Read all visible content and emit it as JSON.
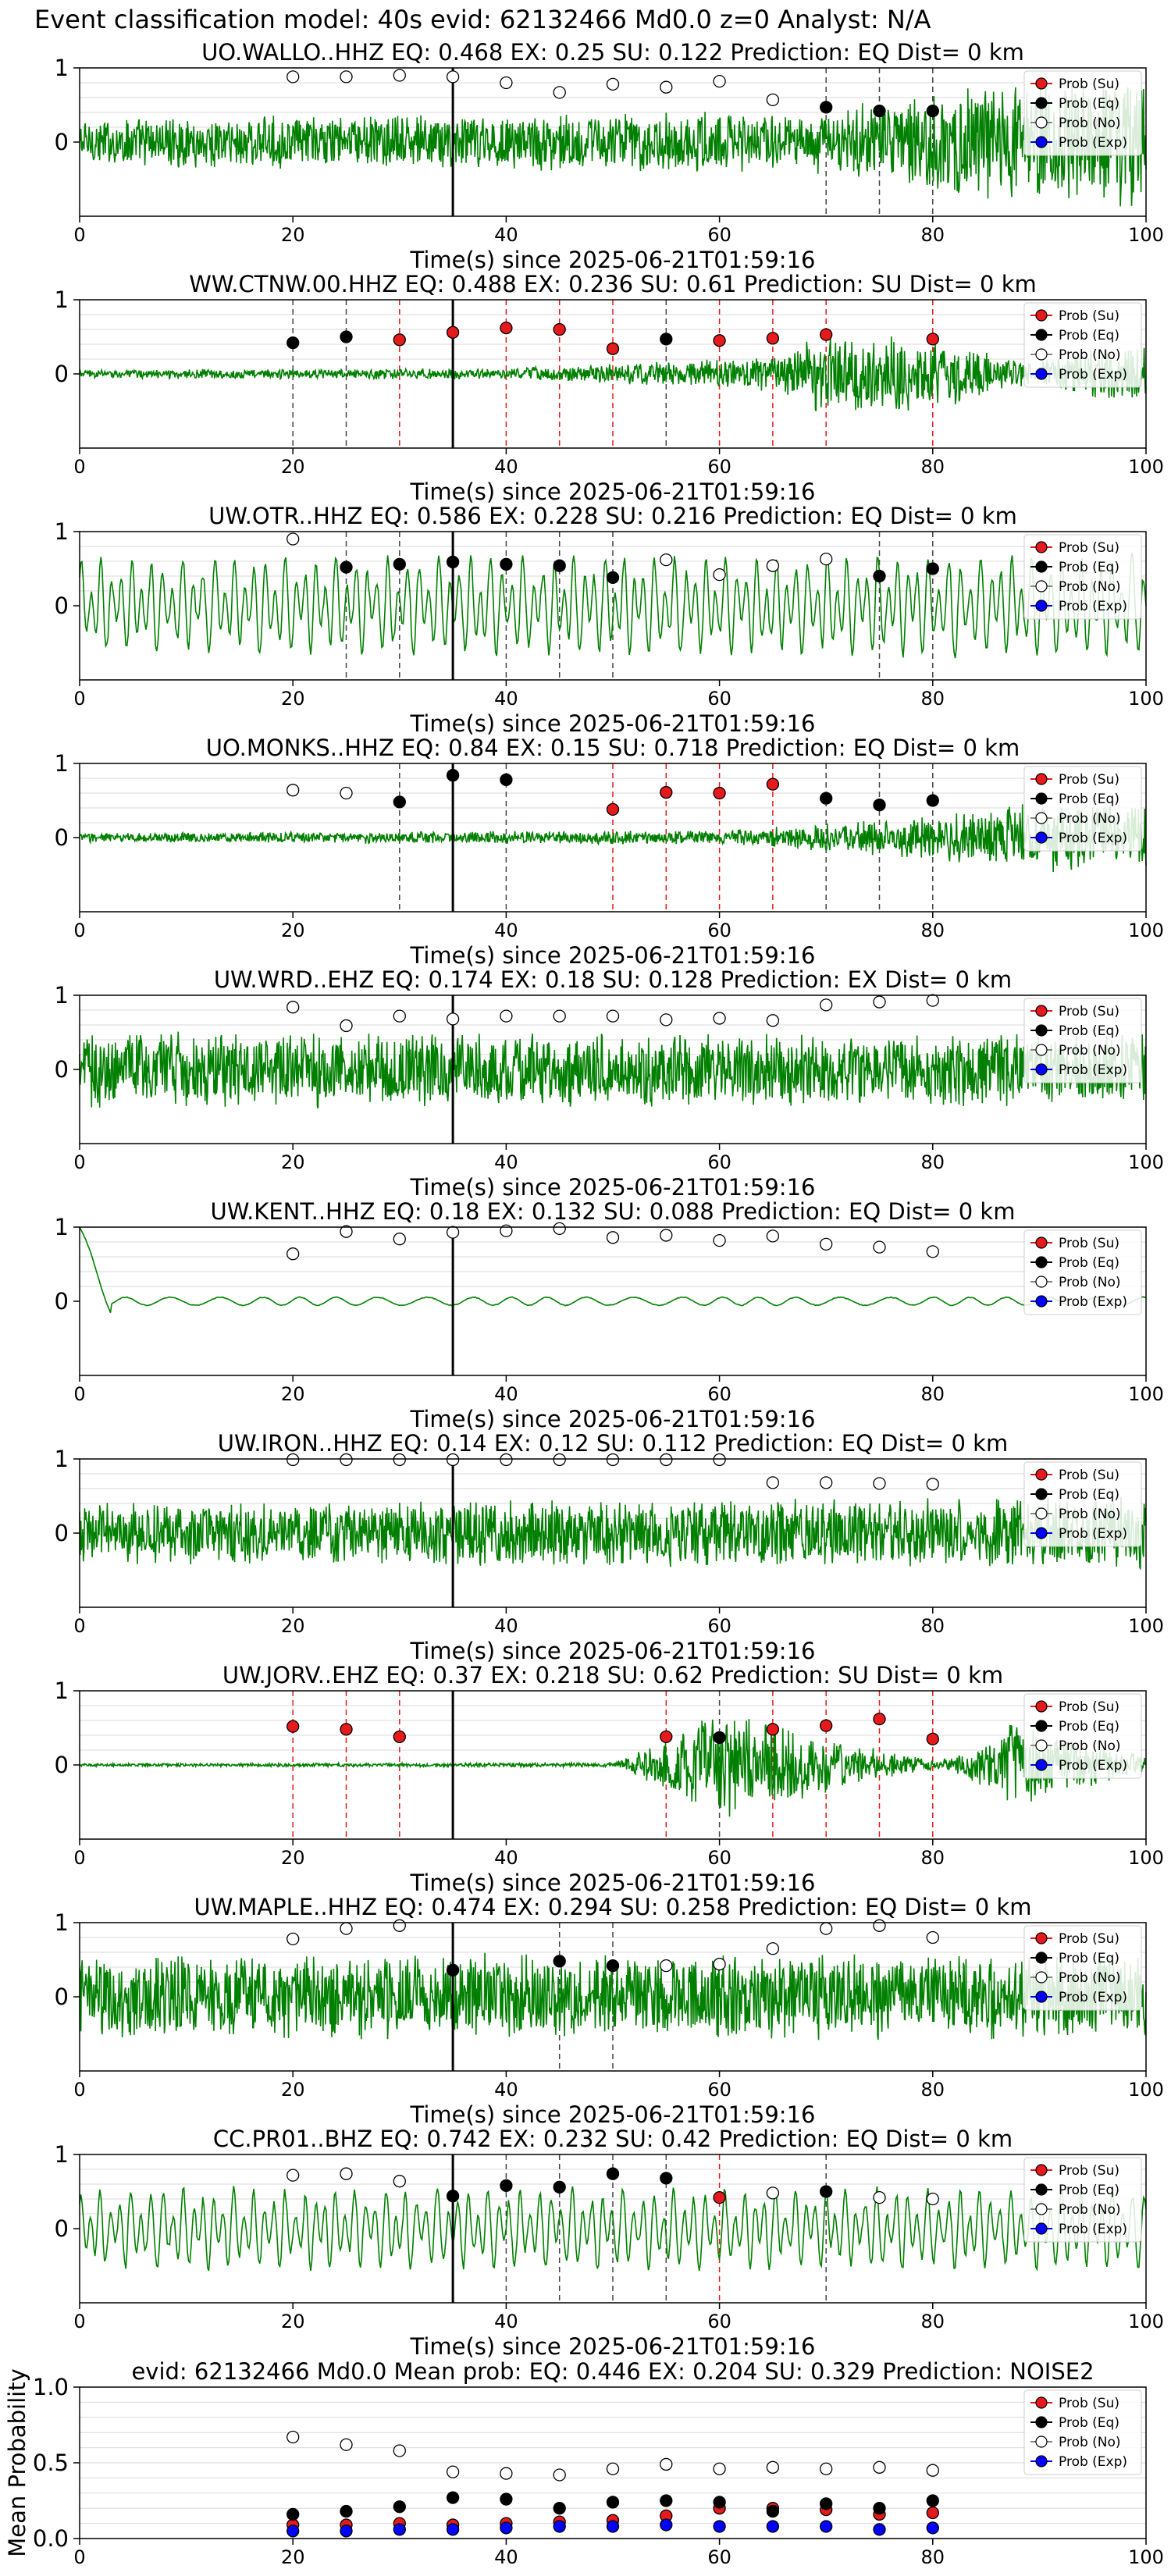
{
  "page": {
    "title": "Event classification model: 40s evid: 62132466 Md0.0 z=0 Analyst: N/A",
    "x_axis_label": "Time(s) since 2025-06-21T01:59:16",
    "x_ticks": [
      0,
      20,
      40,
      60,
      80,
      100
    ],
    "y_ticks": [
      0,
      1
    ]
  },
  "legend": {
    "entries": [
      {
        "label": "Prob (Su)",
        "color": "#e41a1c"
      },
      {
        "label": "Prob (Eq)",
        "color": "#000000"
      },
      {
        "label": "Prob (No)",
        "color": "#ffffff"
      },
      {
        "label": "Prob (Exp)",
        "color": "#0000ff"
      }
    ]
  },
  "colors": {
    "waveform": "#008000",
    "su": "#e41a1c",
    "eq": "#000000",
    "no_fill": "#ffffff",
    "exp": "#0000ff",
    "pick_line": "#000000",
    "grid": "#d9d9d9"
  },
  "chart_data": [
    {
      "type": "line",
      "title": "UO.WALLO..HHZ   EQ: 0.468  EX: 0.25  SU: 0.122   Prediction: EQ    Dist= 0 km",
      "xlim": [
        0,
        100
      ],
      "ylim": [
        -1,
        1
      ],
      "waveform": {
        "style": "noise",
        "envelope": [
          [
            0,
            0.35
          ],
          [
            70,
            0.45
          ],
          [
            85,
            0.8
          ],
          [
            100,
            1.0
          ]
        ]
      },
      "pick_time": 35,
      "markers": [
        {
          "t": 20,
          "cls": "no",
          "p": 0.88
        },
        {
          "t": 25,
          "cls": "no",
          "p": 0.88
        },
        {
          "t": 30,
          "cls": "no",
          "p": 0.9
        },
        {
          "t": 35,
          "cls": "no",
          "p": 0.88
        },
        {
          "t": 40,
          "cls": "no",
          "p": 0.8
        },
        {
          "t": 45,
          "cls": "no",
          "p": 0.67
        },
        {
          "t": 50,
          "cls": "no",
          "p": 0.78
        },
        {
          "t": 55,
          "cls": "no",
          "p": 0.74
        },
        {
          "t": 60,
          "cls": "no",
          "p": 0.82
        },
        {
          "t": 65,
          "cls": "no",
          "p": 0.57
        },
        {
          "t": 70,
          "cls": "eq",
          "p": 0.47
        },
        {
          "t": 75,
          "cls": "eq",
          "p": 0.42
        },
        {
          "t": 80,
          "cls": "eq",
          "p": 0.42
        }
      ]
    },
    {
      "type": "line",
      "title": "WW.CTNW.00.HHZ   EQ: 0.488  EX: 0.236  SU: 0.61   Prediction: SU    Dist= 0 km",
      "xlim": [
        0,
        100
      ],
      "ylim": [
        -1,
        1
      ],
      "waveform": {
        "style": "noise",
        "envelope": [
          [
            0,
            0.06
          ],
          [
            40,
            0.08
          ],
          [
            65,
            0.25
          ],
          [
            70,
            0.6
          ],
          [
            80,
            0.5
          ],
          [
            90,
            0.15
          ],
          [
            93,
            0.35
          ],
          [
            100,
            0.4
          ]
        ]
      },
      "pick_time": 35,
      "markers": [
        {
          "t": 20,
          "cls": "eq",
          "p": 0.42
        },
        {
          "t": 25,
          "cls": "eq",
          "p": 0.5
        },
        {
          "t": 30,
          "cls": "su",
          "p": 0.46
        },
        {
          "t": 35,
          "cls": "su",
          "p": 0.56
        },
        {
          "t": 40,
          "cls": "su",
          "p": 0.62
        },
        {
          "t": 45,
          "cls": "su",
          "p": 0.6
        },
        {
          "t": 50,
          "cls": "su",
          "p": 0.34
        },
        {
          "t": 55,
          "cls": "eq",
          "p": 0.47
        },
        {
          "t": 60,
          "cls": "su",
          "p": 0.45
        },
        {
          "t": 65,
          "cls": "su",
          "p": 0.48
        },
        {
          "t": 70,
          "cls": "su",
          "p": 0.53
        },
        {
          "t": 80,
          "cls": "su",
          "p": 0.47
        }
      ]
    },
    {
      "type": "line",
      "title": "UW.OTR..HHZ   EQ: 0.586  EX: 0.228  SU: 0.216   Prediction: EQ    Dist= 0 km",
      "xlim": [
        0,
        100
      ],
      "ylim": [
        -1,
        1
      ],
      "waveform": {
        "style": "smooth",
        "envelope": [
          [
            0,
            0.65
          ],
          [
            100,
            0.7
          ]
        ]
      },
      "pick_time": 35,
      "markers": [
        {
          "t": 20,
          "cls": "no",
          "p": 0.9
        },
        {
          "t": 25,
          "cls": "eq",
          "p": 0.52
        },
        {
          "t": 30,
          "cls": "eq",
          "p": 0.56
        },
        {
          "t": 35,
          "cls": "eq",
          "p": 0.59
        },
        {
          "t": 40,
          "cls": "eq",
          "p": 0.56
        },
        {
          "t": 45,
          "cls": "eq",
          "p": 0.54
        },
        {
          "t": 50,
          "cls": "eq",
          "p": 0.38
        },
        {
          "t": 55,
          "cls": "no",
          "p": 0.62
        },
        {
          "t": 60,
          "cls": "no",
          "p": 0.42
        },
        {
          "t": 65,
          "cls": "no",
          "p": 0.54
        },
        {
          "t": 70,
          "cls": "no",
          "p": 0.63
        },
        {
          "t": 75,
          "cls": "eq",
          "p": 0.4
        },
        {
          "t": 80,
          "cls": "eq",
          "p": 0.5
        }
      ]
    },
    {
      "type": "line",
      "title": "UO.MONKS..HHZ   EQ: 0.84  EX: 0.15  SU: 0.718   Prediction: EQ    Dist= 0 km",
      "xlim": [
        0,
        100
      ],
      "ylim": [
        -1,
        1
      ],
      "waveform": {
        "style": "noise",
        "envelope": [
          [
            0,
            0.07
          ],
          [
            60,
            0.1
          ],
          [
            75,
            0.25
          ],
          [
            85,
            0.4
          ],
          [
            90,
            0.55
          ],
          [
            100,
            0.5
          ]
        ]
      },
      "pick_time": 35,
      "markers": [
        {
          "t": 20,
          "cls": "no",
          "p": 0.64
        },
        {
          "t": 25,
          "cls": "no",
          "p": 0.6
        },
        {
          "t": 30,
          "cls": "eq",
          "p": 0.48
        },
        {
          "t": 35,
          "cls": "eq",
          "p": 0.84
        },
        {
          "t": 40,
          "cls": "eq",
          "p": 0.78
        },
        {
          "t": 50,
          "cls": "su",
          "p": 0.38
        },
        {
          "t": 55,
          "cls": "su",
          "p": 0.61
        },
        {
          "t": 60,
          "cls": "su",
          "p": 0.6
        },
        {
          "t": 65,
          "cls": "su",
          "p": 0.72
        },
        {
          "t": 70,
          "cls": "eq",
          "p": 0.53
        },
        {
          "t": 75,
          "cls": "eq",
          "p": 0.44
        },
        {
          "t": 80,
          "cls": "eq",
          "p": 0.5
        }
      ]
    },
    {
      "type": "line",
      "title": "UW.WRD..EHZ   EQ: 0.174  EX: 0.18  SU: 0.128   Prediction: EX    Dist= 0 km",
      "xlim": [
        0,
        100
      ],
      "ylim": [
        -1,
        1
      ],
      "waveform": {
        "style": "noise",
        "envelope": [
          [
            0,
            0.55
          ],
          [
            100,
            0.5
          ]
        ]
      },
      "pick_time": 35,
      "markers": [
        {
          "t": 20,
          "cls": "no",
          "p": 0.84
        },
        {
          "t": 25,
          "cls": "no",
          "p": 0.59
        },
        {
          "t": 30,
          "cls": "no",
          "p": 0.72
        },
        {
          "t": 35,
          "cls": "no",
          "p": 0.68
        },
        {
          "t": 40,
          "cls": "no",
          "p": 0.72
        },
        {
          "t": 45,
          "cls": "no",
          "p": 0.72
        },
        {
          "t": 50,
          "cls": "no",
          "p": 0.72
        },
        {
          "t": 55,
          "cls": "no",
          "p": 0.67
        },
        {
          "t": 60,
          "cls": "no",
          "p": 0.69
        },
        {
          "t": 65,
          "cls": "no",
          "p": 0.66
        },
        {
          "t": 70,
          "cls": "no",
          "p": 0.87
        },
        {
          "t": 75,
          "cls": "no",
          "p": 0.91
        },
        {
          "t": 80,
          "cls": "no",
          "p": 0.93
        }
      ]
    },
    {
      "type": "line",
      "title": "UW.KENT..HHZ   EQ: 0.18  EX: 0.132  SU: 0.088   Prediction: EQ    Dist= 0 km",
      "xlim": [
        0,
        100
      ],
      "ylim": [
        -1,
        1
      ],
      "waveform": {
        "style": "kent",
        "envelope": [
          [
            0,
            0.06
          ],
          [
            100,
            0.06
          ]
        ]
      },
      "pick_time": 35,
      "markers": [
        {
          "t": 20,
          "cls": "no",
          "p": 0.64
        },
        {
          "t": 25,
          "cls": "no",
          "p": 0.94
        },
        {
          "t": 30,
          "cls": "no",
          "p": 0.84
        },
        {
          "t": 35,
          "cls": "no",
          "p": 0.93
        },
        {
          "t": 40,
          "cls": "no",
          "p": 0.95
        },
        {
          "t": 45,
          "cls": "no",
          "p": 0.98
        },
        {
          "t": 50,
          "cls": "no",
          "p": 0.86
        },
        {
          "t": 55,
          "cls": "no",
          "p": 0.89
        },
        {
          "t": 60,
          "cls": "no",
          "p": 0.82
        },
        {
          "t": 65,
          "cls": "no",
          "p": 0.88
        },
        {
          "t": 70,
          "cls": "no",
          "p": 0.77
        },
        {
          "t": 75,
          "cls": "no",
          "p": 0.73
        },
        {
          "t": 80,
          "cls": "no",
          "p": 0.67
        }
      ]
    },
    {
      "type": "line",
      "title": "UW.IRON..HHZ   EQ: 0.14  EX: 0.12  SU: 0.112   Prediction: EQ    Dist= 0 km",
      "xlim": [
        0,
        100
      ],
      "ylim": [
        -1,
        1
      ],
      "waveform": {
        "style": "noise",
        "envelope": [
          [
            0,
            0.45
          ],
          [
            100,
            0.5
          ]
        ]
      },
      "pick_time": 35,
      "markers": [
        {
          "t": 20,
          "cls": "no",
          "p": 0.99
        },
        {
          "t": 25,
          "cls": "no",
          "p": 0.99
        },
        {
          "t": 30,
          "cls": "no",
          "p": 0.99
        },
        {
          "t": 35,
          "cls": "no",
          "p": 0.99
        },
        {
          "t": 40,
          "cls": "no",
          "p": 0.99
        },
        {
          "t": 45,
          "cls": "no",
          "p": 0.99
        },
        {
          "t": 50,
          "cls": "no",
          "p": 0.99
        },
        {
          "t": 55,
          "cls": "no",
          "p": 0.99
        },
        {
          "t": 60,
          "cls": "no",
          "p": 0.99
        },
        {
          "t": 65,
          "cls": "no",
          "p": 0.68
        },
        {
          "t": 70,
          "cls": "no",
          "p": 0.68
        },
        {
          "t": 75,
          "cls": "no",
          "p": 0.67
        },
        {
          "t": 80,
          "cls": "no",
          "p": 0.66
        }
      ]
    },
    {
      "type": "line",
      "title": "UW.JORV..EHZ   EQ: 0.37  EX: 0.218  SU: 0.62   Prediction: SU    Dist= 0 km",
      "xlim": [
        0,
        100
      ],
      "ylim": [
        -1,
        1
      ],
      "waveform": {
        "style": "noise",
        "envelope": [
          [
            0,
            0.02
          ],
          [
            50,
            0.03
          ],
          [
            54,
            0.3
          ],
          [
            60,
            0.8
          ],
          [
            66,
            0.6
          ],
          [
            72,
            0.3
          ],
          [
            80,
            0.08
          ],
          [
            83,
            0.15
          ],
          [
            88,
            0.7
          ],
          [
            91,
            0.4
          ],
          [
            100,
            0.15
          ]
        ]
      },
      "pick_time": 35,
      "markers": [
        {
          "t": 20,
          "cls": "su",
          "p": 0.52
        },
        {
          "t": 25,
          "cls": "su",
          "p": 0.48
        },
        {
          "t": 30,
          "cls": "su",
          "p": 0.38
        },
        {
          "t": 55,
          "cls": "su",
          "p": 0.38
        },
        {
          "t": 60,
          "cls": "eq",
          "p": 0.37
        },
        {
          "t": 65,
          "cls": "su",
          "p": 0.48
        },
        {
          "t": 70,
          "cls": "su",
          "p": 0.53
        },
        {
          "t": 75,
          "cls": "su",
          "p": 0.62
        },
        {
          "t": 80,
          "cls": "su",
          "p": 0.35
        }
      ]
    },
    {
      "type": "line",
      "title": "UW.MAPLE..HHZ   EQ: 0.474  EX: 0.294  SU: 0.258   Prediction: EQ    Dist= 0 km",
      "xlim": [
        0,
        100
      ],
      "ylim": [
        -1,
        1
      ],
      "waveform": {
        "style": "noise",
        "envelope": [
          [
            0,
            0.6
          ],
          [
            100,
            0.6
          ]
        ]
      },
      "pick_time": 35,
      "markers": [
        {
          "t": 20,
          "cls": "no",
          "p": 0.78
        },
        {
          "t": 25,
          "cls": "no",
          "p": 0.92
        },
        {
          "t": 30,
          "cls": "no",
          "p": 0.96
        },
        {
          "t": 35,
          "cls": "eq",
          "p": 0.36
        },
        {
          "t": 45,
          "cls": "eq",
          "p": 0.48
        },
        {
          "t": 50,
          "cls": "eq",
          "p": 0.42
        },
        {
          "t": 55,
          "cls": "no",
          "p": 0.42
        },
        {
          "t": 60,
          "cls": "no",
          "p": 0.44
        },
        {
          "t": 65,
          "cls": "no",
          "p": 0.65
        },
        {
          "t": 70,
          "cls": "no",
          "p": 0.92
        },
        {
          "t": 75,
          "cls": "no",
          "p": 0.96
        },
        {
          "t": 80,
          "cls": "no",
          "p": 0.8
        }
      ]
    },
    {
      "type": "line",
      "title": "CC.PR01..BHZ   EQ: 0.742  EX: 0.232  SU: 0.42   Prediction: EQ    Dist= 0 km",
      "xlim": [
        0,
        100
      ],
      "ylim": [
        -1,
        1
      ],
      "waveform": {
        "style": "smooth",
        "envelope": [
          [
            0,
            0.55
          ],
          [
            100,
            0.55
          ]
        ]
      },
      "pick_time": 35,
      "markers": [
        {
          "t": 20,
          "cls": "no",
          "p": 0.72
        },
        {
          "t": 25,
          "cls": "no",
          "p": 0.74
        },
        {
          "t": 30,
          "cls": "no",
          "p": 0.64
        },
        {
          "t": 35,
          "cls": "eq",
          "p": 0.44
        },
        {
          "t": 40,
          "cls": "eq",
          "p": 0.58
        },
        {
          "t": 45,
          "cls": "eq",
          "p": 0.56
        },
        {
          "t": 50,
          "cls": "eq",
          "p": 0.74
        },
        {
          "t": 55,
          "cls": "eq",
          "p": 0.68
        },
        {
          "t": 60,
          "cls": "su",
          "p": 0.42
        },
        {
          "t": 65,
          "cls": "no",
          "p": 0.48
        },
        {
          "t": 70,
          "cls": "eq",
          "p": 0.5
        },
        {
          "t": 75,
          "cls": "no",
          "p": 0.42
        },
        {
          "t": 80,
          "cls": "no",
          "p": 0.4
        }
      ]
    },
    {
      "type": "scatter",
      "title": "evid: 62132466   Md0.0   Mean prob:   EQ: 0.446  EX: 0.204  SU: 0.329   Prediction: NOISE2",
      "ylabel": "Mean Probability",
      "xlim": [
        0,
        100
      ],
      "ylim": [
        0,
        1
      ],
      "y_ticks": [
        "0.0",
        "0.5",
        "1.0"
      ],
      "x": [
        20,
        25,
        30,
        35,
        40,
        45,
        50,
        55,
        60,
        65,
        70,
        75,
        80
      ],
      "series": [
        {
          "name": "Prob (Su)",
          "key": "su",
          "values": [
            0.09,
            0.09,
            0.1,
            0.09,
            0.1,
            0.11,
            0.12,
            0.15,
            0.2,
            0.2,
            0.19,
            0.16,
            0.17
          ]
        },
        {
          "name": "Prob (Eq)",
          "key": "eq",
          "values": [
            0.16,
            0.18,
            0.21,
            0.27,
            0.26,
            0.2,
            0.24,
            0.25,
            0.24,
            0.18,
            0.23,
            0.2,
            0.25
          ]
        },
        {
          "name": "Prob (No)",
          "key": "no",
          "values": [
            0.67,
            0.62,
            0.58,
            0.44,
            0.43,
            0.42,
            0.46,
            0.49,
            0.46,
            0.47,
            0.46,
            0.47,
            0.45
          ]
        },
        {
          "name": "Prob (Exp)",
          "key": "exp",
          "values": [
            0.05,
            0.05,
            0.06,
            0.06,
            0.07,
            0.08,
            0.08,
            0.09,
            0.08,
            0.08,
            0.08,
            0.06,
            0.07
          ]
        }
      ]
    }
  ]
}
